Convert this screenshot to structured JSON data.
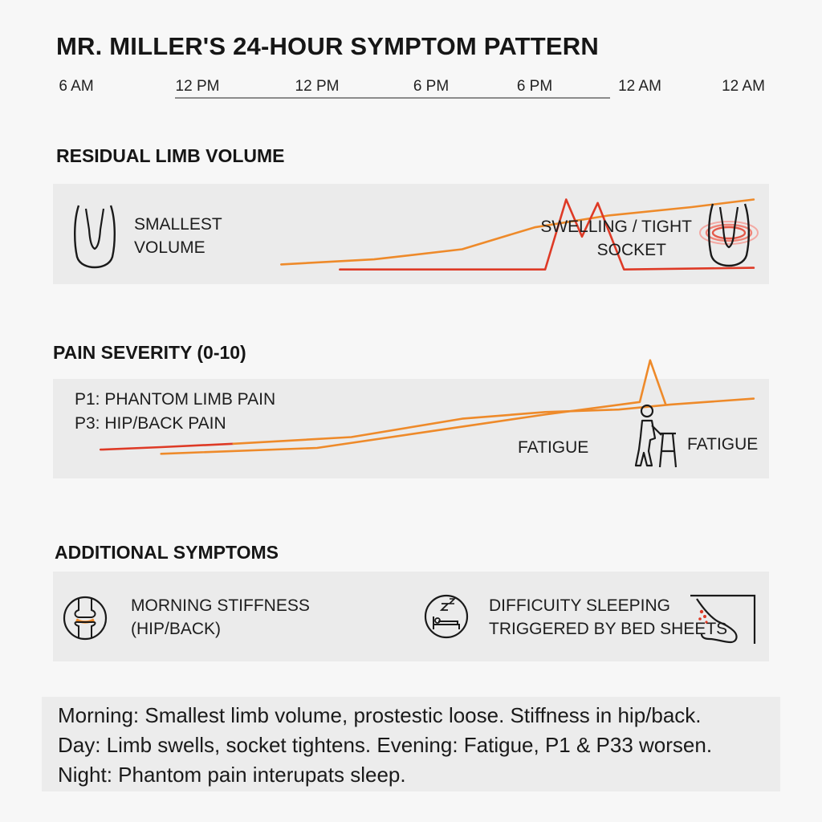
{
  "title": "MR. MILLER'S 24-HOUR SYMPTOM PATTERN",
  "timeline": {
    "ticks": [
      "6 AM",
      "12 PM",
      "12 PM",
      "6 PM",
      "6 PM",
      "12 AM",
      "12 AM"
    ]
  },
  "sections": {
    "limb_volume": {
      "title": "RESIDUAL LIMB VOLUME",
      "left_label": [
        "SMALLEST",
        "VOLUME"
      ],
      "right_label": [
        "SWELLING / TIGHT",
        "SOCKET"
      ],
      "left_icon": "residual-limb-icon",
      "right_icon": "swollen-limb-icon"
    },
    "pain": {
      "title": "PAIN SEVERITY (0-10)",
      "labels": [
        "P1: PHANTOM LIMB PAIN",
        "P3: HIP/BACK PAIN"
      ],
      "fatigue_1": "FATIGUE",
      "fatigue_2": "FATIGUE",
      "icon": "person-with-walker-icon"
    },
    "additional": {
      "title": "ADDITIONAL SYMPTOMS",
      "item1": [
        "MORNING STIFFNESS",
        "(HIP/BACK)"
      ],
      "item2": [
        "DIFFICUITY SLEEPING",
        "TRIGGERED BY BED SHEETS"
      ],
      "icons": [
        "knee-joint-icon",
        "sleep-bed-icon",
        "bed-sheet-foot-icon"
      ]
    }
  },
  "summary": {
    "lines": [
      "Morning: Smallest limb volume, prostestic loose. Stiffness in hip/back.",
      "Day: Limb swells, socket tightens. Evening: Fatigue, P1 & P33 worsen.",
      "Night: Phantom pain interupats sleep."
    ]
  },
  "colors": {
    "orange": "#ee8a2a",
    "red": "#de3a26",
    "panel": "#ebebeb"
  },
  "chart_data": [
    {
      "type": "line",
      "title": "RESIDUAL LIMB VOLUME",
      "x_ticks": [
        "6 AM",
        "12 PM",
        "12 PM",
        "6 PM",
        "6 PM",
        "12 AM",
        "12 AM"
      ],
      "ylim": [
        0,
        10
      ],
      "grid": false,
      "series": [
        {
          "name": "",
          "color": "#ee8a2a",
          "points": [
            [
              1.7,
              1.2
            ],
            [
              2.5,
              1.8
            ],
            [
              3.3,
              3.0
            ],
            [
              4.0,
              5.6
            ],
            [
              4.7,
              7.0
            ],
            [
              5.5,
              8.0
            ],
            [
              6.1,
              8.9
            ]
          ]
        },
        {
          "name": "",
          "color": "#de3a26",
          "points": [
            [
              2.2,
              0.6
            ],
            [
              4.1,
              0.6
            ],
            [
              4.3,
              8.9
            ],
            [
              4.45,
              4.5
            ],
            [
              4.6,
              8.5
            ],
            [
              4.85,
              0.6
            ],
            [
              6.1,
              0.8
            ]
          ]
        }
      ]
    },
    {
      "type": "line",
      "title": "PAIN SEVERITY (0-10)",
      "x_ticks": [
        "6 AM",
        "12 PM",
        "12 PM",
        "6 PM",
        "6 PM",
        "12 AM",
        "12 AM"
      ],
      "ylim": [
        0,
        10
      ],
      "grid": false,
      "series": [
        {
          "name": "",
          "color": "#de3a26",
          "points": [
            [
              0.2,
              2.3
            ],
            [
              0.7,
              2.6
            ],
            [
              1.3,
              3.0
            ]
          ]
        },
        {
          "name": "",
          "color": "#ee8a2a",
          "points": [
            [
              1.3,
              3.0
            ],
            [
              2.3,
              3.8
            ],
            [
              3.3,
              6.0
            ],
            [
              4.1,
              6.8
            ],
            [
              4.8,
              7.1
            ],
            [
              5.3,
              7.7
            ],
            [
              6.1,
              8.4
            ]
          ]
        },
        {
          "name": "",
          "color": "#ee8a2a",
          "points": [
            [
              0.7,
              1.8
            ],
            [
              2.0,
              2.5
            ],
            [
              3.0,
              4.5
            ],
            [
              4.1,
              6.5
            ],
            [
              5.0,
              8.0
            ],
            [
              5.1,
              13.0
            ],
            [
              5.25,
              7.7
            ]
          ]
        }
      ]
    }
  ]
}
